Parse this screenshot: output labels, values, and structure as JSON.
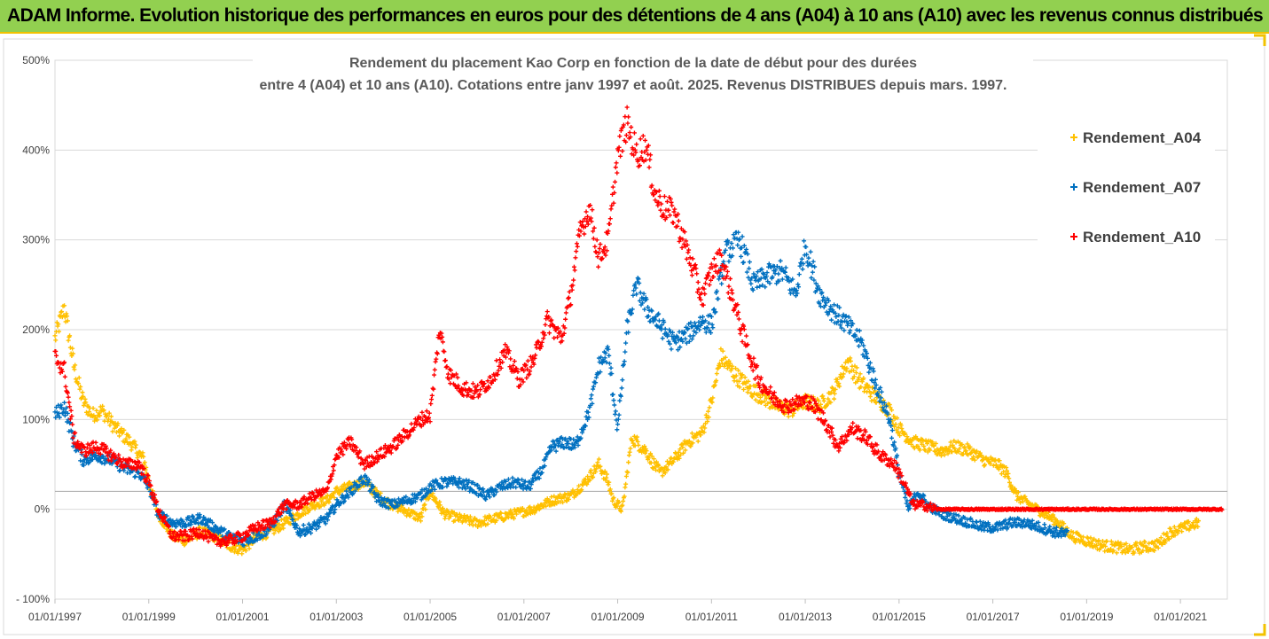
{
  "banner": {
    "title": "ADAM Informe. Evolution historique des performances en euros pour des détentions de 4 ans (A04) à 10 ans (A10) avec les revenus connus distribués"
  },
  "chart_data": {
    "type": "scatter",
    "title_line1": "Rendement du placement Kao Corp en fonction de la date de début pour des durées",
    "title_line2": "entre 4 (A04) et 10 ans (A10). Cotations entre janv 1997 et août. 2025. Revenus DISTRIBUES depuis mars. 1997.",
    "xlabel": "",
    "ylabel": "",
    "xlim": [
      1997.0,
      2022.0
    ],
    "ylim": [
      -100,
      500
    ],
    "reference_line_y": 20,
    "grid": "horizontal",
    "legend_position": "top-right",
    "x_ticks": [
      "01/01/1997",
      "01/01/1999",
      "01/01/2001",
      "01/01/2003",
      "01/01/2005",
      "01/01/2007",
      "01/01/2009",
      "01/01/2011",
      "01/01/2013",
      "01/01/2015",
      "01/01/2017",
      "01/01/2019",
      "01/01/2021"
    ],
    "y_ticks": [
      "- 100%",
      "0%",
      "100%",
      "200%",
      "300%",
      "400%",
      "500%"
    ],
    "series": [
      {
        "name": "Rendement_A04",
        "color": "#ffc000",
        "points": [
          [
            1997.0,
            190
          ],
          [
            1997.2,
            225
          ],
          [
            1997.4,
            160
          ],
          [
            1997.6,
            120
          ],
          [
            1997.8,
            105
          ],
          [
            1998.0,
            110
          ],
          [
            1998.3,
            90
          ],
          [
            1998.6,
            75
          ],
          [
            1998.9,
            55
          ],
          [
            1999.0,
            30
          ],
          [
            1999.2,
            -5
          ],
          [
            1999.5,
            -30
          ],
          [
            1999.8,
            -35
          ],
          [
            2000.1,
            -25
          ],
          [
            2000.4,
            -30
          ],
          [
            2000.7,
            -40
          ],
          [
            2001.0,
            -45
          ],
          [
            2001.3,
            -30
          ],
          [
            2001.6,
            -25
          ],
          [
            2001.9,
            -15
          ],
          [
            2002.2,
            -5
          ],
          [
            2002.5,
            5
          ],
          [
            2002.8,
            10
          ],
          [
            2003.0,
            20
          ],
          [
            2003.3,
            25
          ],
          [
            2003.6,
            30
          ],
          [
            2004.0,
            10
          ],
          [
            2004.4,
            0
          ],
          [
            2004.8,
            -10
          ],
          [
            2005.0,
            20
          ],
          [
            2005.3,
            -5
          ],
          [
            2005.6,
            -10
          ],
          [
            2006.0,
            -15
          ],
          [
            2006.4,
            -10
          ],
          [
            2006.8,
            -5
          ],
          [
            2007.2,
            0
          ],
          [
            2007.6,
            10
          ],
          [
            2008.0,
            15
          ],
          [
            2008.3,
            30
          ],
          [
            2008.6,
            50
          ],
          [
            2008.8,
            30
          ],
          [
            2008.9,
            10
          ],
          [
            2009.1,
            0
          ],
          [
            2009.3,
            80
          ],
          [
            2009.6,
            65
          ],
          [
            2009.9,
            40
          ],
          [
            2010.2,
            55
          ],
          [
            2010.5,
            75
          ],
          [
            2010.8,
            85
          ],
          [
            2011.0,
            120
          ],
          [
            2011.2,
            170
          ],
          [
            2011.5,
            150
          ],
          [
            2011.8,
            135
          ],
          [
            2012.1,
            125
          ],
          [
            2012.4,
            115
          ],
          [
            2012.7,
            110
          ],
          [
            2013.0,
            120
          ],
          [
            2013.3,
            115
          ],
          [
            2013.6,
            130
          ],
          [
            2013.9,
            165
          ],
          [
            2014.2,
            140
          ],
          [
            2014.5,
            125
          ],
          [
            2014.8,
            110
          ],
          [
            2015.0,
            90
          ],
          [
            2015.3,
            75
          ],
          [
            2015.6,
            70
          ],
          [
            2015.9,
            65
          ],
          [
            2016.2,
            70
          ],
          [
            2016.5,
            65
          ],
          [
            2016.8,
            55
          ],
          [
            2017.1,
            50
          ],
          [
            2017.3,
            40
          ],
          [
            2017.5,
            15
          ],
          [
            2017.8,
            5
          ],
          [
            2018.1,
            -5
          ],
          [
            2018.4,
            -15
          ],
          [
            2018.7,
            -30
          ],
          [
            2019.0,
            -35
          ],
          [
            2019.3,
            -40
          ],
          [
            2019.6,
            -42
          ],
          [
            2019.9,
            -45
          ],
          [
            2020.2,
            -42
          ],
          [
            2020.5,
            -40
          ],
          [
            2020.8,
            -25
          ],
          [
            2021.1,
            -20
          ],
          [
            2021.4,
            -15
          ]
        ]
      },
      {
        "name": "Rendement_A07",
        "color": "#0070c0",
        "points": [
          [
            1997.0,
            105
          ],
          [
            1997.2,
            115
          ],
          [
            1997.4,
            75
          ],
          [
            1997.6,
            55
          ],
          [
            1997.9,
            60
          ],
          [
            1998.2,
            55
          ],
          [
            1998.5,
            45
          ],
          [
            1998.8,
            40
          ],
          [
            1999.0,
            25
          ],
          [
            1999.2,
            -5
          ],
          [
            1999.5,
            -15
          ],
          [
            1999.8,
            -15
          ],
          [
            2000.1,
            -10
          ],
          [
            2000.4,
            -20
          ],
          [
            2000.7,
            -30
          ],
          [
            2001.0,
            -35
          ],
          [
            2001.3,
            -30
          ],
          [
            2001.6,
            -20
          ],
          [
            2001.9,
            5
          ],
          [
            2002.2,
            -25
          ],
          [
            2002.5,
            -20
          ],
          [
            2002.8,
            -10
          ],
          [
            2003.0,
            5
          ],
          [
            2003.3,
            20
          ],
          [
            2003.6,
            35
          ],
          [
            2003.9,
            10
          ],
          [
            2004.2,
            5
          ],
          [
            2004.5,
            10
          ],
          [
            2004.8,
            15
          ],
          [
            2005.0,
            25
          ],
          [
            2005.3,
            30
          ],
          [
            2005.6,
            30
          ],
          [
            2005.9,
            25
          ],
          [
            2006.2,
            15
          ],
          [
            2006.5,
            25
          ],
          [
            2006.8,
            30
          ],
          [
            2007.1,
            25
          ],
          [
            2007.4,
            45
          ],
          [
            2007.6,
            70
          ],
          [
            2007.9,
            75
          ],
          [
            2008.1,
            70
          ],
          [
            2008.4,
            110
          ],
          [
            2008.6,
            160
          ],
          [
            2008.8,
            175
          ],
          [
            2008.9,
            130
          ],
          [
            2009.0,
            90
          ],
          [
            2009.2,
            200
          ],
          [
            2009.4,
            250
          ],
          [
            2009.6,
            225
          ],
          [
            2009.9,
            205
          ],
          [
            2010.2,
            185
          ],
          [
            2010.5,
            195
          ],
          [
            2010.8,
            210
          ],
          [
            2011.0,
            205
          ],
          [
            2011.3,
            285
          ],
          [
            2011.6,
            300
          ],
          [
            2011.9,
            250
          ],
          [
            2012.2,
            260
          ],
          [
            2012.5,
            265
          ],
          [
            2012.8,
            240
          ],
          [
            2013.0,
            295
          ],
          [
            2013.3,
            240
          ],
          [
            2013.6,
            220
          ],
          [
            2013.9,
            205
          ],
          [
            2014.2,
            185
          ],
          [
            2014.5,
            140
          ],
          [
            2014.8,
            100
          ],
          [
            2015.0,
            40
          ],
          [
            2015.2,
            0
          ],
          [
            2015.4,
            20
          ],
          [
            2015.6,
            5
          ],
          [
            2015.9,
            -5
          ],
          [
            2016.2,
            -10
          ],
          [
            2016.5,
            -15
          ],
          [
            2016.8,
            -20
          ],
          [
            2017.1,
            -20
          ],
          [
            2017.4,
            -15
          ],
          [
            2017.7,
            -15
          ],
          [
            2018.0,
            -20
          ],
          [
            2018.3,
            -25
          ],
          [
            2018.6,
            -28
          ]
        ]
      },
      {
        "name": "Rendement_A10",
        "color": "#ff0000",
        "points": [
          [
            1997.0,
            170
          ],
          [
            1997.2,
            155
          ],
          [
            1997.4,
            80
          ],
          [
            1997.6,
            65
          ],
          [
            1997.9,
            70
          ],
          [
            1998.2,
            60
          ],
          [
            1998.5,
            50
          ],
          [
            1998.8,
            50
          ],
          [
            1999.0,
            30
          ],
          [
            1999.2,
            0
          ],
          [
            1999.5,
            -30
          ],
          [
            1999.8,
            -30
          ],
          [
            2000.1,
            -25
          ],
          [
            2000.4,
            -35
          ],
          [
            2000.7,
            -35
          ],
          [
            2001.0,
            -30
          ],
          [
            2001.3,
            -20
          ],
          [
            2001.6,
            -15
          ],
          [
            2001.9,
            5
          ],
          [
            2002.2,
            5
          ],
          [
            2002.5,
            15
          ],
          [
            2002.8,
            20
          ],
          [
            2003.0,
            60
          ],
          [
            2003.3,
            75
          ],
          [
            2003.6,
            50
          ],
          [
            2003.9,
            60
          ],
          [
            2004.2,
            70
          ],
          [
            2004.5,
            85
          ],
          [
            2004.8,
            100
          ],
          [
            2005.0,
            105
          ],
          [
            2005.2,
            200
          ],
          [
            2005.4,
            150
          ],
          [
            2005.7,
            135
          ],
          [
            2006.0,
            130
          ],
          [
            2006.3,
            145
          ],
          [
            2006.6,
            175
          ],
          [
            2006.9,
            145
          ],
          [
            2007.2,
            165
          ],
          [
            2007.5,
            210
          ],
          [
            2007.8,
            190
          ],
          [
            2008.0,
            240
          ],
          [
            2008.2,
            310
          ],
          [
            2008.4,
            335
          ],
          [
            2008.6,
            280
          ],
          [
            2008.8,
            300
          ],
          [
            2009.0,
            395
          ],
          [
            2009.2,
            430
          ],
          [
            2009.4,
            395
          ],
          [
            2009.6,
            405
          ],
          [
            2009.8,
            350
          ],
          [
            2010.0,
            335
          ],
          [
            2010.2,
            330
          ],
          [
            2010.5,
            285
          ],
          [
            2010.8,
            235
          ],
          [
            2011.0,
            265
          ],
          [
            2011.2,
            280
          ],
          [
            2011.4,
            245
          ],
          [
            2011.7,
            190
          ],
          [
            2012.0,
            145
          ],
          [
            2012.3,
            125
          ],
          [
            2012.6,
            115
          ],
          [
            2012.9,
            120
          ],
          [
            2013.1,
            120
          ],
          [
            2013.4,
            100
          ],
          [
            2013.7,
            70
          ],
          [
            2014.0,
            90
          ],
          [
            2014.3,
            80
          ],
          [
            2014.6,
            60
          ],
          [
            2014.9,
            50
          ],
          [
            2015.1,
            30
          ],
          [
            2015.3,
            5
          ],
          [
            2015.5,
            5
          ],
          [
            2015.8,
            0
          ],
          [
            2016.5,
            0
          ],
          [
            2017.5,
            0
          ],
          [
            2018.5,
            0
          ],
          [
            2019.5,
            0
          ],
          [
            2020.5,
            0
          ],
          [
            2021.5,
            0
          ],
          [
            2021.9,
            0
          ]
        ]
      }
    ]
  }
}
